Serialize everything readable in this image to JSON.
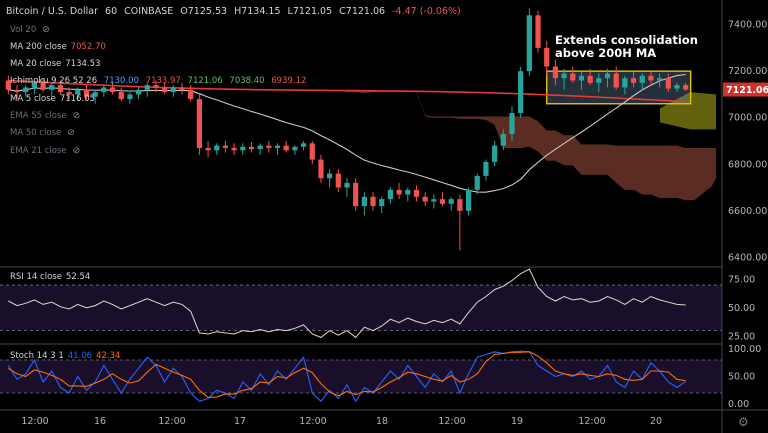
{
  "header": {
    "symbol": "Bitcoin / U.S. Dollar",
    "interval": "60",
    "exchange": "COINBASE",
    "open": "O7125.53",
    "high": "H7134.15",
    "low": "L7121.05",
    "close": "C7121.06",
    "change": "-4.47 (-0.06%)"
  },
  "legend": {
    "vol": "Vol 20",
    "ma200_label": "MA 200 close",
    "ma200_value": "7052.70",
    "ma20_label": "MA 20 close",
    "ma20_value": "7134.53",
    "ichimoku_label": "Ichimoku 9 26 52 26",
    "ichimoku_v1": "7130.00",
    "ichimoku_v2": "7133.97",
    "ichimoku_v3": "7121.06",
    "ichimoku_v4": "7038.40",
    "ichimoku_v5": "6939.12",
    "ma5_label": "MA 5 close",
    "ma5_value": "7116.05",
    "ema55_label": "EMA 55 close",
    "ema50_label": "MA 50 close",
    "ema21_label": "EMA 21 close"
  },
  "annotation": {
    "line1": "Extends consolidation",
    "line2": "above 200H MA"
  },
  "price_badge": "7121.06",
  "rsi": {
    "label": "RSI 14 close",
    "value": "52.54"
  },
  "stoch": {
    "label": "Stoch 14 3 1",
    "k": "41.06",
    "d": "42.34"
  },
  "colors": {
    "up": "#26a69a",
    "down": "#ef5350",
    "ma200": "#e53935",
    "ma20": "#c8c8c8",
    "kumo_bear": "#7a3b2e",
    "kumo_bull": "#6b6b10",
    "rsi_line": "#e0d9c8",
    "stoch_k": "#2962ff",
    "stoch_d": "#ff6d00",
    "badge": "#d32f2f"
  },
  "chart_data": [
    {
      "type": "candlestick",
      "title": "Bitcoin / U.S. Dollar, 60, COINBASE",
      "ylim": [
        6380,
        7480
      ],
      "yticks": [
        6400,
        6600,
        6800,
        7000,
        7200,
        7400
      ],
      "xticks": [
        "12:00",
        "16",
        "12:00",
        "17",
        "12:00",
        "18",
        "12:00",
        "19",
        "12:00",
        "20"
      ],
      "ohlc": [
        [
          7160,
          7180,
          7100,
          7120
        ],
        [
          7120,
          7140,
          7080,
          7110
        ],
        [
          7110,
          7140,
          7090,
          7130
        ],
        [
          7130,
          7160,
          7100,
          7150
        ],
        [
          7150,
          7170,
          7110,
          7120
        ],
        [
          7120,
          7150,
          7090,
          7140
        ],
        [
          7140,
          7160,
          7100,
          7110
        ],
        [
          7110,
          7130,
          7080,
          7100
        ],
        [
          7100,
          7130,
          7070,
          7120
        ],
        [
          7120,
          7140,
          7080,
          7090
        ],
        [
          7090,
          7120,
          7060,
          7110
        ],
        [
          7110,
          7140,
          7090,
          7130
        ],
        [
          7130,
          7150,
          7100,
          7110
        ],
        [
          7110,
          7130,
          7070,
          7080
        ],
        [
          7080,
          7110,
          7060,
          7100
        ],
        [
          7100,
          7130,
          7080,
          7120
        ],
        [
          7120,
          7150,
          7090,
          7140
        ],
        [
          7140,
          7160,
          7110,
          7130
        ],
        [
          7130,
          7150,
          7100,
          7110
        ],
        [
          7110,
          7140,
          7090,
          7130
        ],
        [
          7130,
          7150,
          7100,
          7120
        ],
        [
          7120,
          7140,
          7070,
          7080
        ],
        [
          7080,
          7100,
          6840,
          6870
        ],
        [
          6870,
          6900,
          6830,
          6860
        ],
        [
          6860,
          6890,
          6840,
          6880
        ],
        [
          6880,
          6900,
          6850,
          6870
        ],
        [
          6870,
          6890,
          6840,
          6860
        ],
        [
          6860,
          6890,
          6840,
          6875
        ],
        [
          6875,
          6895,
          6850,
          6865
        ],
        [
          6865,
          6890,
          6840,
          6880
        ],
        [
          6880,
          6900,
          6850,
          6870
        ],
        [
          6870,
          6890,
          6840,
          6880
        ],
        [
          6880,
          6900,
          6850,
          6860
        ],
        [
          6860,
          6880,
          6840,
          6875
        ],
        [
          6875,
          6900,
          6860,
          6890
        ],
        [
          6890,
          6900,
          6800,
          6820
        ],
        [
          6820,
          6840,
          6720,
          6740
        ],
        [
          6740,
          6780,
          6700,
          6760
        ],
        [
          6760,
          6780,
          6680,
          6700
        ],
        [
          6700,
          6740,
          6660,
          6720
        ],
        [
          6720,
          6740,
          6600,
          6620
        ],
        [
          6620,
          6680,
          6580,
          6660
        ],
        [
          6660,
          6680,
          6600,
          6620
        ],
        [
          6620,
          6660,
          6590,
          6650
        ],
        [
          6650,
          6700,
          6630,
          6690
        ],
        [
          6690,
          6720,
          6650,
          6670
        ],
        [
          6670,
          6700,
          6640,
          6690
        ],
        [
          6690,
          6710,
          6640,
          6660
        ],
        [
          6660,
          6680,
          6620,
          6640
        ],
        [
          6640,
          6670,
          6610,
          6650
        ],
        [
          6650,
          6680,
          6620,
          6630
        ],
        [
          6630,
          6660,
          6600,
          6650
        ],
        [
          6650,
          6670,
          6430,
          6600
        ],
        [
          6600,
          6700,
          6580,
          6690
        ],
        [
          6690,
          6760,
          6670,
          6750
        ],
        [
          6750,
          6820,
          6730,
          6810
        ],
        [
          6810,
          6900,
          6790,
          6880
        ],
        [
          6880,
          6950,
          6860,
          6930
        ],
        [
          6930,
          7050,
          6900,
          7020
        ],
        [
          7020,
          7220,
          7000,
          7200
        ],
        [
          7200,
          7470,
          7180,
          7440
        ],
        [
          7440,
          7460,
          7280,
          7300
        ],
        [
          7300,
          7330,
          7180,
          7220
        ],
        [
          7220,
          7250,
          7140,
          7170
        ],
        [
          7170,
          7210,
          7120,
          7190
        ],
        [
          7190,
          7220,
          7150,
          7160
        ],
        [
          7160,
          7200,
          7120,
          7180
        ],
        [
          7180,
          7210,
          7140,
          7150
        ],
        [
          7150,
          7190,
          7110,
          7170
        ],
        [
          7170,
          7210,
          7130,
          7190
        ],
        [
          7190,
          7220,
          7120,
          7130
        ],
        [
          7130,
          7180,
          7100,
          7170
        ],
        [
          7170,
          7200,
          7130,
          7150
        ],
        [
          7150,
          7190,
          7120,
          7180
        ],
        [
          7180,
          7200,
          7140,
          7160
        ],
        [
          7160,
          7190,
          7130,
          7170
        ],
        [
          7170,
          7190,
          7110,
          7125
        ],
        [
          7125,
          7150,
          7110,
          7140
        ],
        [
          7140,
          7150,
          7115,
          7121
        ]
      ]
    },
    {
      "type": "line",
      "title": "RSI 14 close",
      "ylim": [
        20,
        85
      ],
      "yticks": [
        25,
        50,
        75
      ],
      "bands": [
        30,
        70
      ],
      "values": [
        56,
        52,
        54,
        57,
        53,
        55,
        51,
        49,
        53,
        50,
        52,
        56,
        53,
        49,
        52,
        55,
        58,
        55,
        52,
        55,
        53,
        47,
        28,
        27,
        29,
        28,
        27,
        30,
        29,
        31,
        29,
        31,
        30,
        32,
        35,
        27,
        24,
        30,
        26,
        30,
        24,
        33,
        30,
        34,
        40,
        37,
        41,
        38,
        36,
        39,
        37,
        40,
        36,
        46,
        55,
        60,
        66,
        69,
        74,
        80,
        84,
        68,
        60,
        56,
        60,
        57,
        58,
        55,
        56,
        60,
        57,
        53,
        58,
        55,
        60,
        57,
        55,
        53,
        52.54
      ]
    },
    {
      "type": "line",
      "title": "Stoch 14 3 1",
      "ylim": [
        0,
        100
      ],
      "yticks": [
        0,
        50,
        100
      ],
      "bands": [
        20,
        80
      ],
      "series": [
        {
          "name": "%K",
          "values": [
            70,
            45,
            55,
            80,
            40,
            60,
            30,
            20,
            50,
            25,
            40,
            70,
            45,
            20,
            45,
            65,
            85,
            70,
            40,
            65,
            50,
            20,
            5,
            10,
            25,
            20,
            10,
            40,
            25,
            55,
            35,
            60,
            45,
            65,
            85,
            20,
            5,
            25,
            10,
            35,
            5,
            30,
            20,
            40,
            60,
            45,
            70,
            50,
            30,
            55,
            40,
            60,
            20,
            55,
            85,
            90,
            95,
            92,
            95,
            96,
            95,
            70,
            60,
            50,
            55,
            50,
            60,
            45,
            50,
            70,
            40,
            30,
            60,
            45,
            75,
            60,
            40,
            30,
            41.06
          ]
        },
        {
          "name": "%D",
          "values": [
            65,
            55,
            50,
            62,
            58,
            52,
            45,
            33,
            33,
            32,
            38,
            45,
            55,
            45,
            38,
            42,
            58,
            72,
            65,
            58,
            52,
            45,
            25,
            12,
            13,
            18,
            18,
            25,
            28,
            40,
            38,
            50,
            47,
            57,
            65,
            57,
            37,
            22,
            15,
            23,
            17,
            23,
            22,
            30,
            40,
            48,
            58,
            55,
            50,
            45,
            42,
            52,
            40,
            45,
            55,
            77,
            90,
            92,
            94,
            94,
            95,
            87,
            75,
            60,
            55,
            52,
            55,
            52,
            50,
            55,
            52,
            45,
            43,
            45,
            60,
            60,
            58,
            45,
            42.34
          ]
        }
      ]
    }
  ]
}
